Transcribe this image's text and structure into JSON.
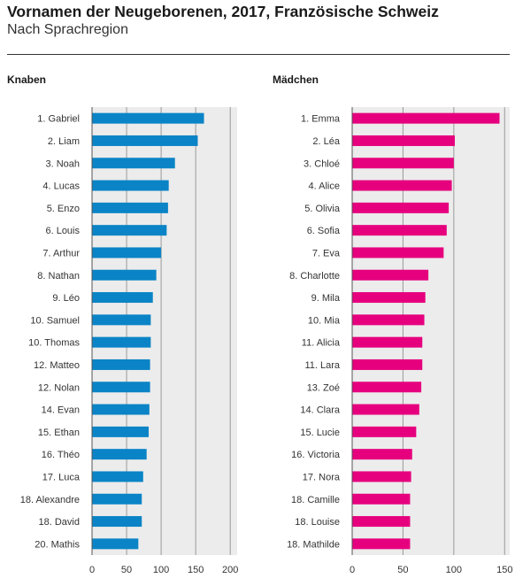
{
  "header": {
    "title": "Vornamen der Neugeborenen, 2017, Französische Schweiz",
    "subtitle": "Nach Sprachregion"
  },
  "chart_data": [
    {
      "type": "bar",
      "orientation": "horizontal",
      "panel_label": "Knaben",
      "color": "#0a84c6",
      "categories": [
        "1. Gabriel",
        "2. Liam",
        "3. Noah",
        "4. Lucas",
        "5. Enzo",
        "6. Louis",
        "7. Arthur",
        "8. Nathan",
        "9. Léo",
        "10. Samuel",
        "10. Thomas",
        "12. Matteo",
        "12. Nolan",
        "14. Evan",
        "15. Ethan",
        "16. Théo",
        "17. Luca",
        "18. Alexandre",
        "18. David",
        "20. Mathis"
      ],
      "values": [
        162,
        153,
        120,
        111,
        110,
        108,
        100,
        93,
        88,
        85,
        85,
        84,
        84,
        83,
        82,
        79,
        74,
        72,
        72,
        67
      ],
      "xlim": [
        0,
        210
      ],
      "xticks": [
        0,
        50,
        100,
        150,
        200
      ],
      "grid": true
    },
    {
      "type": "bar",
      "orientation": "horizontal",
      "panel_label": "Mädchen",
      "color": "#e6007e",
      "categories": [
        "1. Emma",
        "2. Léa",
        "3. Chloé",
        "4. Alice",
        "5. Olivia",
        "6. Sofia",
        "7. Eva",
        "8. Charlotte",
        "9. Mila",
        "10. Mia",
        "11. Alicia",
        "11. Lara",
        "13. Zoé",
        "14. Clara",
        "15. Lucie",
        "16. Victoria",
        "17. Nora",
        "18. Camille",
        "18. Louise",
        "18. Mathilde"
      ],
      "values": [
        145,
        101,
        100,
        98,
        95,
        93,
        90,
        75,
        72,
        71,
        69,
        69,
        68,
        66,
        63,
        59,
        58,
        57,
        57,
        57
      ],
      "xlim": [
        0,
        155
      ],
      "xticks": [
        0,
        50,
        100,
        150
      ],
      "grid": true
    }
  ]
}
